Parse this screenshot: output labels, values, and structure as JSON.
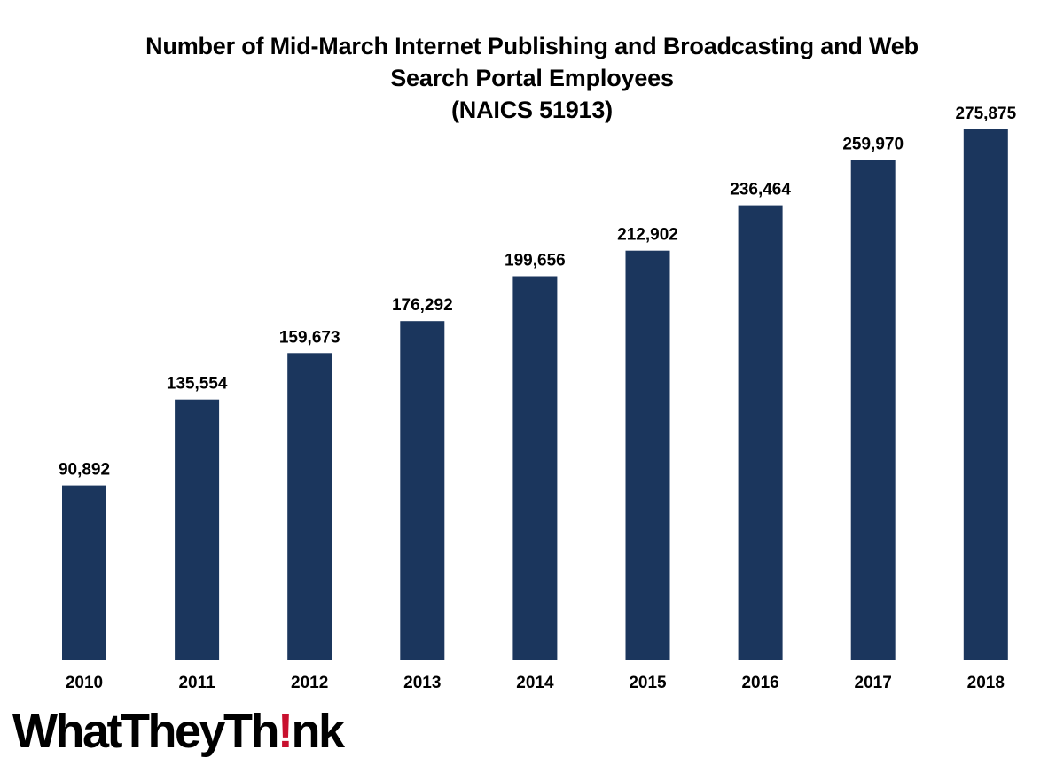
{
  "chart_data": {
    "type": "bar",
    "title_lines": [
      "Number of Mid-March Internet Publishing and Broadcasting and Web",
      "Search Portal Employees",
      "(NAICS 51913)"
    ],
    "categories": [
      "2010",
      "2011",
      "2012",
      "2013",
      "2014",
      "2015",
      "2016",
      "2017",
      "2018"
    ],
    "values": [
      90892,
      135554,
      159673,
      176292,
      199656,
      212902,
      236464,
      259970,
      275875
    ],
    "value_labels": [
      "90,892",
      "135,554",
      "159,673",
      "176,292",
      "199,656",
      "212,902",
      "236,464",
      "259,970",
      "275,875"
    ],
    "ylim": [
      0,
      275875
    ],
    "grid": false,
    "legend": "none",
    "bar_color": "#1b365d"
  },
  "logo": {
    "before": "WhatTheyTh",
    "mark": "!",
    "after": "nk",
    "mark_color": "#c8102e"
  }
}
